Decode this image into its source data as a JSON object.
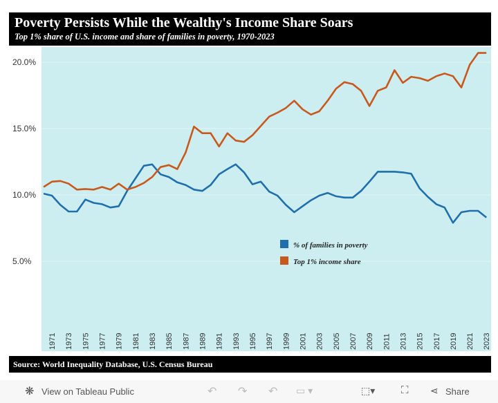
{
  "header": {
    "title": "Poverty Persists While the Wealthy's Income Share Soars",
    "subtitle": "Top 1% share of U.S. income and share of families in poverty, 1970-2023"
  },
  "source": "Source: World Inequality Database, U.S. Census Bureau",
  "toolbar": {
    "view_label": "View on Tableau Public",
    "share_label": "Share",
    "icons": [
      "tableau-logo-icon",
      "undo-icon",
      "redo-icon",
      "revert-icon",
      "refresh-icon",
      "download-icon",
      "fullscreen-icon",
      "share-icon"
    ]
  },
  "chart_data": {
    "type": "line",
    "x": [
      1970,
      1971,
      1972,
      1973,
      1974,
      1975,
      1976,
      1977,
      1978,
      1979,
      1980,
      1981,
      1982,
      1983,
      1984,
      1985,
      1986,
      1987,
      1988,
      1989,
      1990,
      1991,
      1992,
      1993,
      1994,
      1995,
      1996,
      1997,
      1998,
      1999,
      2000,
      2001,
      2002,
      2003,
      2004,
      2005,
      2006,
      2007,
      2008,
      2009,
      2010,
      2011,
      2012,
      2013,
      2014,
      2015,
      2016,
      2017,
      2018,
      2019,
      2020,
      2021,
      2022,
      2023
    ],
    "xticks": [
      "1971",
      "1973",
      "1975",
      "1977",
      "1979",
      "1981",
      "1983",
      "1985",
      "1987",
      "1989",
      "1991",
      "1993",
      "1995",
      "1997",
      "1999",
      "2001",
      "2003",
      "2005",
      "2007",
      "2009",
      "2011",
      "2013",
      "2015",
      "2017",
      "2019",
      "2021",
      "2023"
    ],
    "yticks": [
      "5.0%",
      "10.0%",
      "15.0%",
      "20.0%"
    ],
    "ylim": [
      0,
      21.5
    ],
    "grid": true,
    "legend_placement": "center-right",
    "background": "#cdeef0",
    "series": [
      {
        "name": "% of families in poverty",
        "color": "#1f6fad",
        "values": [
          10.1,
          9.95,
          9.25,
          8.75,
          8.75,
          9.65,
          9.4,
          9.3,
          9.05,
          9.15,
          10.3,
          11.25,
          12.2,
          12.3,
          11.55,
          11.35,
          10.95,
          10.75,
          10.4,
          10.3,
          10.75,
          11.55,
          11.95,
          12.3,
          11.7,
          10.8,
          11.0,
          10.25,
          9.95,
          9.25,
          8.7,
          9.15,
          9.6,
          9.95,
          10.15,
          9.9,
          9.8,
          9.8,
          10.3,
          11.0,
          11.75,
          11.75,
          11.75,
          11.7,
          11.6,
          10.5,
          9.85,
          9.3,
          9.05,
          7.9,
          8.7,
          8.8,
          8.8,
          8.3
        ]
      },
      {
        "name": "Top 1% income share",
        "color": "#c9581c",
        "values": [
          10.6,
          11.0,
          11.05,
          10.85,
          10.4,
          10.45,
          10.4,
          10.6,
          10.4,
          10.85,
          10.4,
          10.6,
          10.9,
          11.35,
          12.1,
          12.25,
          11.95,
          13.2,
          15.15,
          14.65,
          14.65,
          13.65,
          14.65,
          14.1,
          14.0,
          14.5,
          15.2,
          15.9,
          16.2,
          16.55,
          17.1,
          16.45,
          16.05,
          16.3,
          17.1,
          18.0,
          18.5,
          18.35,
          17.85,
          16.7,
          17.85,
          18.1,
          19.4,
          18.45,
          18.9,
          18.8,
          18.6,
          18.95,
          19.15,
          18.95,
          18.1,
          19.8,
          20.7,
          20.7
        ]
      }
    ]
  }
}
